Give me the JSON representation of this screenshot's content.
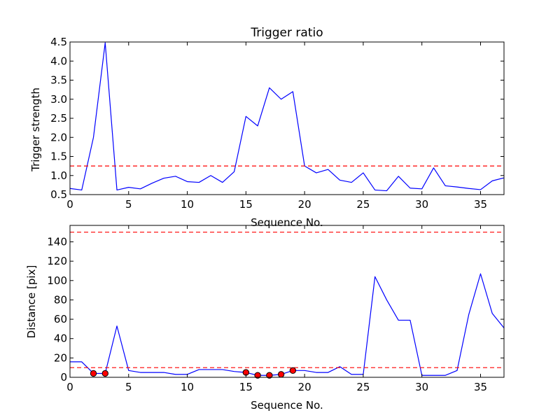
{
  "chart_data": [
    {
      "type": "line",
      "title": "Trigger ratio",
      "xlabel": "Sequence No.",
      "ylabel": "Trigger strength",
      "xlim": [
        0,
        37
      ],
      "ylim": [
        0.5,
        4.5
      ],
      "xticks": [
        0,
        5,
        10,
        15,
        20,
        25,
        30,
        35
      ],
      "yticks": [
        0.5,
        1.0,
        1.5,
        2.0,
        2.5,
        3.0,
        3.5,
        4.0,
        4.5
      ],
      "ytick_labels": [
        "0.5",
        "1.0",
        "1.5",
        "2.0",
        "2.5",
        "3.0",
        "3.5",
        "4.0",
        "4.5"
      ],
      "series": [
        {
          "color": "#0000ff",
          "x": [
            0,
            1,
            2,
            3,
            4,
            5,
            6,
            7,
            8,
            9,
            10,
            11,
            12,
            13,
            14,
            15,
            16,
            17,
            18,
            19,
            20,
            21,
            22,
            23,
            24,
            25,
            26,
            27,
            28,
            29,
            30,
            31,
            32,
            33,
            34,
            35,
            36,
            37
          ],
          "values": [
            0.66,
            0.62,
            2.0,
            4.48,
            0.62,
            0.69,
            0.65,
            0.8,
            0.93,
            0.98,
            0.84,
            0.82,
            1.0,
            0.82,
            1.1,
            2.55,
            2.3,
            3.3,
            3.0,
            3.2,
            1.25,
            1.07,
            1.16,
            0.88,
            0.82,
            1.07,
            0.62,
            0.6,
            0.98,
            0.67,
            0.65,
            1.2,
            0.73,
            0.7,
            0.66,
            0.63,
            0.86,
            0.94
          ]
        }
      ],
      "hlines": [
        {
          "y": 1.25,
          "color": "#ff0000",
          "style": "dashed"
        }
      ]
    },
    {
      "type": "line",
      "title": "",
      "xlabel": "Sequence No.",
      "ylabel": "Distance [pix]",
      "xlim": [
        0,
        37
      ],
      "ylim": [
        0,
        157
      ],
      "xticks": [
        0,
        5,
        10,
        15,
        20,
        25,
        30,
        35
      ],
      "yticks": [
        0,
        20,
        40,
        60,
        80,
        100,
        120,
        140
      ],
      "ytick_labels": [
        "0",
        "20",
        "40",
        "60",
        "80",
        "100",
        "120",
        "140"
      ],
      "series": [
        {
          "color": "#0000ff",
          "x": [
            0,
            1,
            2,
            3,
            4,
            5,
            6,
            7,
            8,
            9,
            10,
            11,
            12,
            13,
            14,
            15,
            16,
            17,
            18,
            19,
            20,
            21,
            22,
            23,
            24,
            25,
            26,
            27,
            28,
            29,
            30,
            31,
            32,
            33,
            34,
            35,
            36,
            37
          ],
          "values": [
            16,
            16,
            4,
            4,
            53,
            7,
            5,
            5,
            5,
            3,
            3,
            8,
            8,
            8,
            6,
            5,
            2,
            2,
            3,
            7,
            7,
            5,
            5,
            11,
            3,
            3,
            104,
            80,
            59,
            59,
            2,
            2,
            2,
            7,
            65,
            107,
            66,
            51
          ]
        }
      ],
      "markers": {
        "color": "#ff0000",
        "x": [
          2,
          3,
          15,
          16,
          17,
          18,
          19
        ],
        "y": [
          4,
          4,
          5,
          2,
          2,
          3,
          7
        ]
      },
      "hlines": [
        {
          "y": 150,
          "color": "#ff0000",
          "style": "dashed"
        },
        {
          "y": 10,
          "color": "#ff0000",
          "style": "dashed"
        }
      ]
    }
  ]
}
